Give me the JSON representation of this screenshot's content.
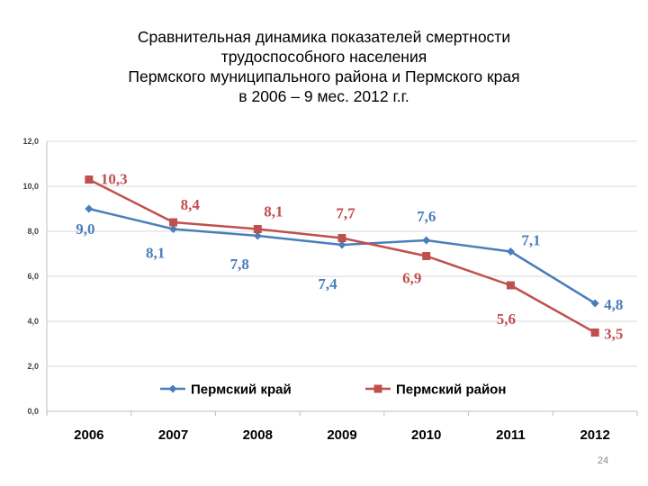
{
  "title": {
    "lines": [
      "Сравнительная динамика показателей смертности",
      "трудоспособного населения",
      "Пермского муниципального района и Пермского края",
      "в 2006 – 9 мес. 2012 г.г."
    ]
  },
  "page_number": "24",
  "colors": {
    "krai": "#4a7ebb",
    "raion": "#c0504d",
    "grid": "#d9d9d9",
    "axis": "#bfbfbf"
  },
  "chart_data": {
    "type": "line",
    "title": "Сравнительная динамика показателей смертности трудоспособного населения Пермского муниципального района и Пермского края в 2006 – 9 мес. 2012 г.г.",
    "categories": [
      "2006",
      "2007",
      "2008",
      "2009",
      "2010",
      "2011",
      "2012"
    ],
    "ylim": [
      0,
      12
    ],
    "yticks": [
      "0,0",
      "2,0",
      "4,0",
      "6,0",
      "8,0",
      "10,0",
      "12,0"
    ],
    "grid": true,
    "legend": "inside-bottom-center",
    "series": [
      {
        "name": "Пермский край",
        "marker": "diamond",
        "values": [
          9.0,
          8.1,
          7.8,
          7.4,
          7.6,
          7.1,
          4.8
        ],
        "labels": [
          "9,0",
          "8,1",
          "7,8",
          "7,4",
          "7,6",
          "7,1",
          "4,8"
        ]
      },
      {
        "name": "Пермский район",
        "marker": "square",
        "values": [
          10.3,
          8.4,
          8.1,
          7.7,
          6.9,
          5.6,
          3.5
        ],
        "labels": [
          "10,3",
          "8,4",
          "8,1",
          "7,7",
          "6,9",
          "5,6",
          "3,5"
        ]
      }
    ]
  }
}
